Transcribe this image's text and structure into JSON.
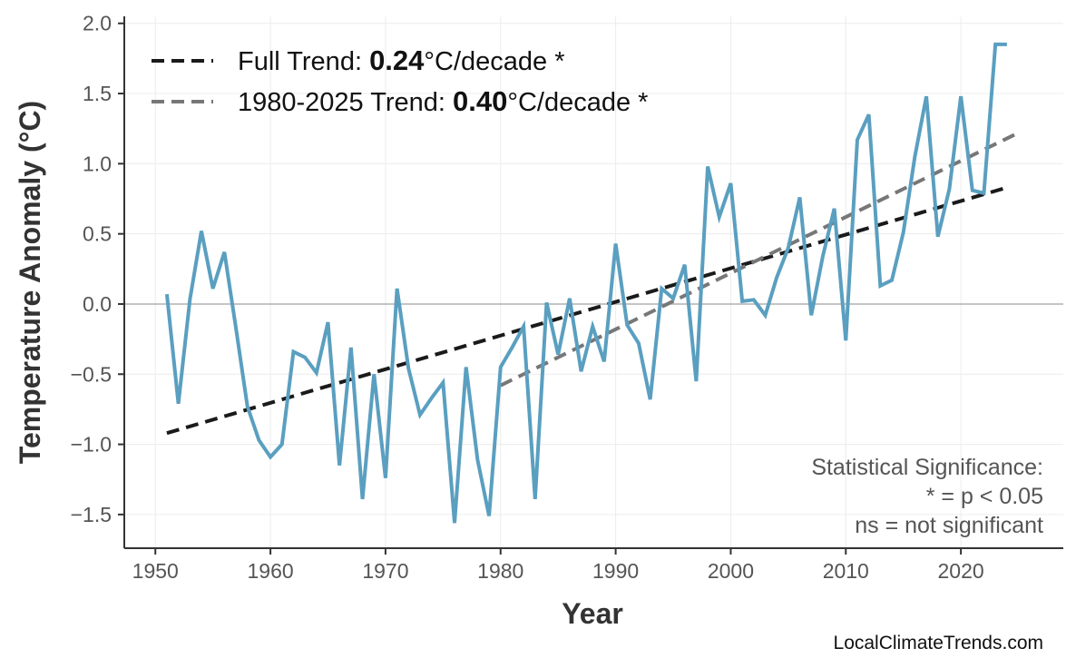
{
  "chart_data": {
    "type": "line",
    "xlabel": "Year",
    "ylabel": "Temperature Anomaly (°C)",
    "xlim": [
      1947.3,
      2028.9
    ],
    "ylim": [
      -1.74,
      2.05
    ],
    "grid": true,
    "x_ticks": [
      1950,
      1960,
      1970,
      1980,
      1990,
      2000,
      2010,
      2020
    ],
    "x_tick_labels": [
      "1950",
      "1960",
      "1970",
      "1980",
      "1990",
      "2000",
      "2010",
      "2020"
    ],
    "y_ticks": [
      -1.5,
      -1.0,
      -0.5,
      0.0,
      0.5,
      1.0,
      1.5,
      2.0
    ],
    "y_tick_labels": [
      "−1.5",
      "−1.0",
      "−0.5",
      "0.0",
      "0.5",
      "1.0",
      "1.5",
      "2.0"
    ],
    "series": [
      {
        "name": "Temperature Anomaly",
        "color": "#5a9fc0",
        "x": [
          1951,
          1952,
          1953,
          1954,
          1955,
          1956,
          1957,
          1958,
          1959,
          1960,
          1961,
          1962,
          1963,
          1964,
          1965,
          1966,
          1967,
          1968,
          1969,
          1970,
          1971,
          1972,
          1973,
          1974,
          1975,
          1976,
          1977,
          1978,
          1979,
          1980,
          1981,
          1982,
          1983,
          1984,
          1985,
          1986,
          1987,
          1988,
          1989,
          1990,
          1991,
          1992,
          1993,
          1994,
          1995,
          1996,
          1997,
          1998,
          1999,
          2000,
          2001,
          2002,
          2003,
          2004,
          2005,
          2006,
          2007,
          2008,
          2009,
          2010,
          2011,
          2012,
          2013,
          2014,
          2015,
          2016,
          2017,
          2018,
          2019,
          2020,
          2021,
          2022,
          2023,
          2024
        ],
        "values": [
          0.07,
          -0.71,
          0.03,
          0.52,
          0.11,
          0.37,
          -0.17,
          -0.73,
          -0.97,
          -1.09,
          -1.0,
          -0.34,
          -0.38,
          -0.49,
          -0.13,
          -1.15,
          -0.31,
          -1.39,
          -0.5,
          -1.24,
          0.11,
          -0.46,
          -0.79,
          -0.67,
          -0.56,
          -1.56,
          -0.45,
          -1.11,
          -1.51,
          -0.45,
          -0.31,
          -0.16,
          -1.39,
          0.01,
          -0.36,
          0.04,
          -0.48,
          -0.16,
          -0.41,
          0.43,
          -0.15,
          -0.28,
          -0.68,
          0.11,
          0.04,
          0.28,
          -0.55,
          0.98,
          0.62,
          0.86,
          0.02,
          0.03,
          -0.08,
          0.19,
          0.4,
          0.76,
          -0.08,
          0.34,
          0.68,
          -0.26,
          1.17,
          1.35,
          0.13,
          0.17,
          0.51,
          1.05,
          1.48,
          0.48,
          0.82,
          1.48,
          0.81,
          0.79,
          1.85,
          1.85
        ]
      }
    ],
    "trends": [
      {
        "name": "Full Trend",
        "color": "#1a1a1a",
        "x": [
          1951,
          2024
        ],
        "values": [
          -0.92,
          0.83
        ],
        "label_prefix": "Full Trend: ",
        "label_value": "0.24",
        "label_suffix": "°C/decade *"
      },
      {
        "name": "1980-2025 Trend",
        "color": "#777777",
        "x": [
          1980,
          2025
        ],
        "values": [
          -0.58,
          1.22
        ],
        "label_prefix": "1980-2025 Trend: ",
        "label_value": "0.40",
        "label_suffix": "°C/decade *"
      }
    ],
    "legend_position": "top-left",
    "annotations": {
      "significance": [
        "Statistical Significance:",
        "* = p < 0.05",
        "ns = not significant"
      ],
      "credit": "LocalClimateTrends.com"
    }
  }
}
